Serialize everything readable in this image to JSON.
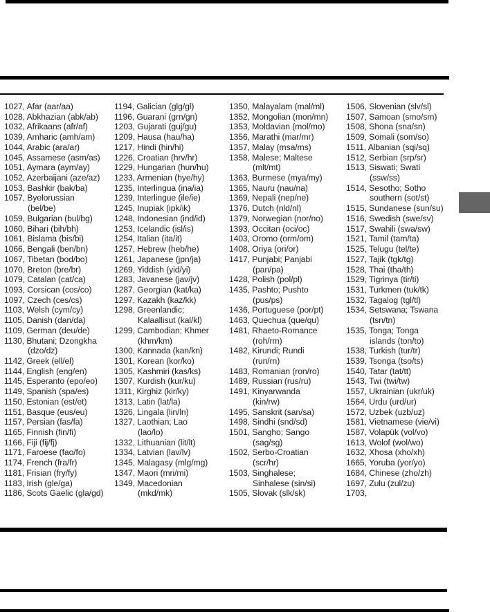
{
  "document": {
    "background_color": "#ffffff",
    "text_color": "#1d1d1d",
    "rule_color": "#000000",
    "edge_tab_color": "#656565"
  },
  "language_code_list": {
    "columns": [
      [
        [
          "1027, Afar (aar/aa)"
        ],
        [
          "1028, Abkhazian (abk/ab)"
        ],
        [
          "1032, Afrikaans (afr/af)"
        ],
        [
          "1039, Amharic (amh/am)"
        ],
        [
          "1044, Arabic (ara/ar)"
        ],
        [
          "1045, Assamese (asm/as)"
        ],
        [
          "1051, Aymara (aym/ay)"
        ],
        [
          "1052, Azerbaijani (aze/az)"
        ],
        [
          "1053, Bashkir (bak/ba)"
        ],
        [
          "1057, Byelorussian",
          "(bel/be)"
        ],
        [
          "1059, Bulgarian (bul/bg)"
        ],
        [
          "1060, Bihari (bih/bh)"
        ],
        [
          "1061, Bislama (bis/bi)"
        ],
        [
          "1066, Bengali (ben/bn)"
        ],
        [
          "1067, Tibetan (bod/bo)"
        ],
        [
          "1070, Breton (bre/br)"
        ],
        [
          "1079, Catalan (cat/ca)"
        ],
        [
          "1093, Corsican (cos/co)"
        ],
        [
          "1097, Czech (ces/cs)"
        ],
        [
          "1103, Welsh (cym/cy)"
        ],
        [
          "1105, Danish (dan/da)"
        ],
        [
          "1109, German (deu/de)"
        ],
        [
          "1130, Bhutani; Dzongkha",
          "(dzo/dz)"
        ],
        [
          "1142, Greek (ell/el)"
        ],
        [
          "1144, English (eng/en)"
        ],
        [
          "1145, Esperanto (epo/eo)"
        ],
        [
          "1149, Spanish (spa/es)"
        ],
        [
          "1150, Estonian (est/et)"
        ],
        [
          "1151, Basque (eus/eu)"
        ],
        [
          "1157, Persian (fas/fa)"
        ],
        [
          "1165, Finnish (fin/fi)"
        ],
        [
          "1166, Fiji (fij/fj)"
        ],
        [
          "1171, Faroese (fao/fo)"
        ],
        [
          "1174, French (fra/fr)"
        ],
        [
          "1181, Frisian (fry/fy)"
        ],
        [
          "1183, Irish (gle/ga)"
        ],
        [
          "1186, Scots Gaelic (gla/gd)"
        ]
      ],
      [
        [
          "1194, Galician (glg/gl)"
        ],
        [
          "1196, Guarani (grn/gn)"
        ],
        [
          "1203, Gujarati (guj/gu)"
        ],
        [
          "1209, Hausa (hau/ha)"
        ],
        [
          "1217, Hindi (hin/hi)"
        ],
        [
          "1226, Croatian (hrv/hr)"
        ],
        [
          "1229, Hungarian (hun/hu)"
        ],
        [
          "1233, Armenian (hye/hy)"
        ],
        [
          "1235, Interlingua (ina/ia)"
        ],
        [
          "1239, Interlingue (ile/ie)"
        ],
        [
          "1245, Inupiak (ipk/ik)"
        ],
        [
          "1248, Indonesian (ind/id)"
        ],
        [
          "1253, Icelandic (isl/is)"
        ],
        [
          "1254, Italian (ita/it)"
        ],
        [
          "1257, Hebrew (heb/he)"
        ],
        [
          "1261, Japanese (jpn/ja)"
        ],
        [
          "1269, Yiddish (yid/yi)"
        ],
        [
          "1283, Javanese (jav/jv)"
        ],
        [
          "1287, Georgian (kat/ka)"
        ],
        [
          "1297, Kazakh (kaz/kk)"
        ],
        [
          "1298, Greenlandic;",
          "Kalaallisut (kal/kl)"
        ],
        [
          "1299, Cambodian; Khmer",
          "(khm/km)"
        ],
        [
          "1300, Kannada (kan/kn)"
        ],
        [
          "1301, Korean (kor/ko)"
        ],
        [
          "1305, Kashmiri (kas/ks)"
        ],
        [
          "1307, Kurdish (kur/ku)"
        ],
        [
          "1311, Kirghiz (kir/ky)"
        ],
        [
          "1313, Latin (lat/la)"
        ],
        [
          "1326, Lingala (lin/ln)"
        ],
        [
          "1327, Laothian; Lao",
          "(lao/lo)"
        ],
        [
          "1332, Lithuanian (lit/lt)"
        ],
        [
          "1334, Latvian (lav/lv)"
        ],
        [
          "1345, Malagasy (mlg/mg)"
        ],
        [
          "1347, Maori (mri/mi)"
        ],
        [
          "1349, Macedonian",
          "(mkd/mk)"
        ]
      ],
      [
        [
          "1350, Malayalam (mal/ml)"
        ],
        [
          "1352, Mongolian (mon/mn)"
        ],
        [
          "1353, Moldavian (mol/mo)"
        ],
        [
          "1356, Marathi (mar/mr)"
        ],
        [
          "1357, Malay (msa/ms)"
        ],
        [
          "1358, Malese; Maltese",
          "(mlt/mt)"
        ],
        [
          "1363, Burmese (mya/my)"
        ],
        [
          "1365, Nauru (nau/na)"
        ],
        [
          "1369, Nepali (nep/ne)"
        ],
        [
          "1376, Dutch (nld/nl)"
        ],
        [
          "1379, Norwegian (nor/no)"
        ],
        [
          "1393, Occitan (oci/oc)"
        ],
        [
          "1403, Oromo (orm/om)"
        ],
        [
          "1408, Oriya (ori/or)"
        ],
        [
          "1417, Punjabi; Panjabi",
          "(pan/pa)"
        ],
        [
          "1428, Polish (pol/pl)"
        ],
        [
          "1435, Pashto; Pushto",
          "(pus/ps)"
        ],
        [
          "1436, Portuguese (por/pt)"
        ],
        [
          "1463, Quechua (que/qu)"
        ],
        [
          "1481, Rhaeto-Romance",
          "(roh/rm)"
        ],
        [
          "1482, Kirundi; Rundi",
          "(run/rn)"
        ],
        [
          "1483, Romanian (ron/ro)"
        ],
        [
          "1489, Russian (rus/ru)"
        ],
        [
          "1491, Kinyarwanda",
          "(kin/rw)"
        ],
        [
          "1495, Sanskrit (san/sa)"
        ],
        [
          "1498, Sindhi (snd/sd)"
        ],
        [
          "1501, Sangho; Sango",
          "(sag/sg)"
        ],
        [
          "1502, Serbo-Croatian",
          "(scr/hr)"
        ],
        [
          "1503, Singhalese;",
          "Sinhalese (sin/si)"
        ],
        [
          "1505, Slovak (slk/sk)"
        ]
      ],
      [
        [
          "1506, Slovenian (slv/sl)"
        ],
        [
          "1507, Samoan (smo/sm)"
        ],
        [
          "1508, Shona (sna/sn)"
        ],
        [
          "1509, Somali (som/so)"
        ],
        [
          "1511, Albanian (sqi/sq)"
        ],
        [
          "1512, Serbian (srp/sr)"
        ],
        [
          "1513, Siswati; Swati",
          "(ssw/ss)"
        ],
        [
          "1514, Sesotho; Sotho",
          "southern (sot/st)"
        ],
        [
          "1515, Sundanese (sun/su)"
        ],
        [
          "1516, Swedish (swe/sv)"
        ],
        [
          "1517, Swahili (swa/sw)"
        ],
        [
          "1521, Tamil (tam/ta)"
        ],
        [
          "1525, Telugu (tel/te)"
        ],
        [
          "1527, Tajik (tgk/tg)"
        ],
        [
          "1528, Thai (tha/th)"
        ],
        [
          "1529, Tigrinya (tir/ti)"
        ],
        [
          "1531, Turkmen (tuk/tk)"
        ],
        [
          "1532, Tagalog (tgl/tl)"
        ],
        [
          "1534, Setswana; Tswana",
          "(tsn/tn)"
        ],
        [
          "1535, Tonga; Tonga",
          "islands (ton/to)"
        ],
        [
          "1538, Turkish (tur/tr)"
        ],
        [
          "1539, Tsonga (tso/ts)"
        ],
        [
          "1540, Tatar (tat/tt)"
        ],
        [
          "1543, Twi (twi/tw)"
        ],
        [
          "1557, Ukrainian (ukr/uk)"
        ],
        [
          "1564, Urdu (urd/ur)"
        ],
        [
          "1572, Uzbek (uzb/uz)"
        ],
        [
          "1581, Vietnamese (vie/vi)"
        ],
        [
          "1587, Volapük (vol/vo)"
        ],
        [
          "1613, Wolof (wol/wo)"
        ],
        [
          "1632, Xhosa (xho/xh)"
        ],
        [
          "1665, Yoruba (yor/yo)"
        ],
        [
          "1684, Chinese (zho/zh)"
        ],
        [
          "1697, Zulu (zul/zu)"
        ],
        [
          "1703,"
        ]
      ]
    ]
  }
}
